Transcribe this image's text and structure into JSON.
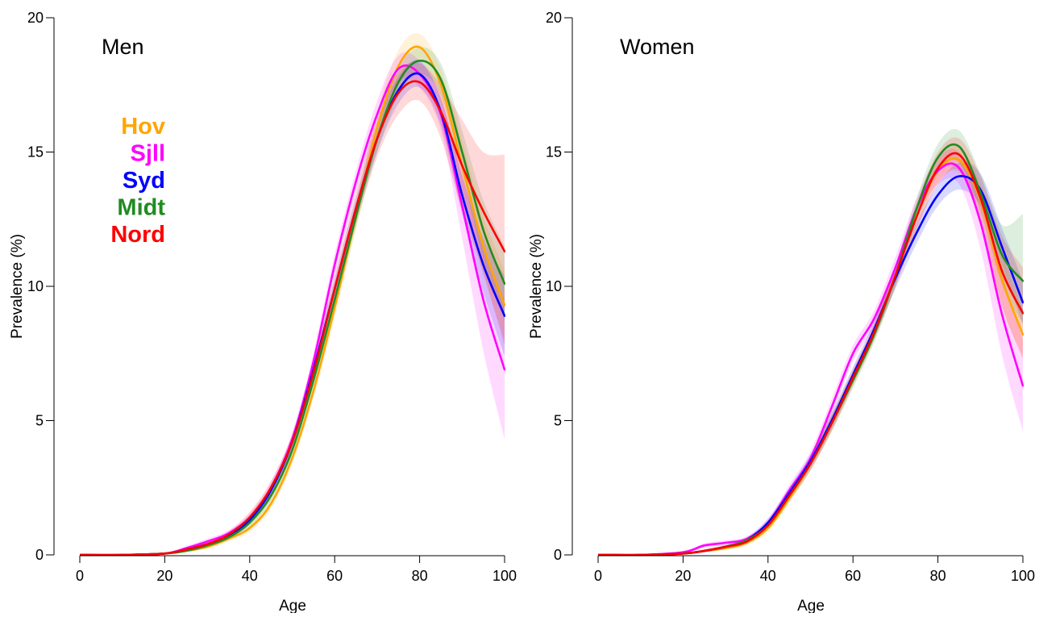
{
  "chart_data": [
    {
      "type": "line",
      "title": "Men",
      "xlabel": "Age",
      "ylabel": "Prevalence (%)",
      "xlim": [
        0,
        100
      ],
      "ylim": [
        0,
        20
      ],
      "xticks": [
        0,
        20,
        40,
        60,
        80,
        100
      ],
      "yticks": [
        0,
        5,
        10,
        15,
        20
      ],
      "grid": false,
      "legend": {
        "placement": "left",
        "entries": [
          "Hov",
          "Sjll",
          "Syd",
          "Midt",
          "Nord"
        ]
      },
      "series": [
        {
          "name": "Hov",
          "color": "#FFA500",
          "x": [
            0,
            10,
            20,
            25,
            30,
            35,
            40,
            45,
            50,
            55,
            60,
            65,
            70,
            75,
            80,
            85,
            90,
            95,
            100
          ],
          "y": [
            0,
            0,
            0.05,
            0.15,
            0.3,
            0.6,
            1.0,
            1.9,
            3.6,
            6.1,
            9.2,
            12.6,
            15.9,
            18.2,
            18.9,
            17.5,
            14.5,
            11.5,
            9.3
          ],
          "lower": [
            0,
            0,
            0.03,
            0.1,
            0.22,
            0.5,
            0.85,
            1.7,
            3.35,
            5.8,
            8.8,
            12.1,
            15.3,
            17.6,
            18.4,
            16.9,
            13.6,
            10.4,
            8.0
          ],
          "upper": [
            0,
            0,
            0.07,
            0.2,
            0.38,
            0.7,
            1.15,
            2.1,
            3.85,
            6.4,
            9.6,
            13.1,
            16.5,
            18.8,
            19.4,
            18.1,
            15.4,
            12.6,
            10.6
          ]
        },
        {
          "name": "Sjll",
          "color": "#FF00FF",
          "x": [
            0,
            10,
            20,
            25,
            30,
            35,
            40,
            45,
            50,
            55,
            60,
            65,
            70,
            75,
            80,
            85,
            90,
            95,
            100
          ],
          "y": [
            0,
            0,
            0.05,
            0.25,
            0.5,
            0.8,
            1.4,
            2.5,
            4.3,
            7.2,
            10.8,
            13.9,
            16.4,
            18.1,
            17.9,
            16.4,
            13.0,
            9.5,
            6.9
          ],
          "lower": [
            0,
            0,
            0.03,
            0.18,
            0.4,
            0.68,
            1.25,
            2.3,
            4.05,
            6.9,
            10.4,
            13.5,
            15.9,
            17.6,
            17.4,
            15.8,
            11.8,
            7.6,
            4.3
          ],
          "upper": [
            0,
            0,
            0.07,
            0.32,
            0.6,
            0.92,
            1.55,
            2.7,
            4.55,
            7.5,
            11.2,
            14.3,
            16.9,
            18.6,
            18.4,
            17.0,
            14.2,
            11.4,
            9.5
          ]
        },
        {
          "name": "Syd",
          "color": "#0000FF",
          "x": [
            0,
            10,
            20,
            25,
            30,
            35,
            40,
            45,
            50,
            55,
            60,
            65,
            70,
            75,
            80,
            85,
            90,
            95,
            100
          ],
          "y": [
            0,
            0,
            0.05,
            0.2,
            0.4,
            0.7,
            1.3,
            2.4,
            4.2,
            6.9,
            9.9,
            12.9,
            15.5,
            17.3,
            17.9,
            16.5,
            13.4,
            10.8,
            8.9
          ],
          "lower": [
            0,
            0,
            0.03,
            0.14,
            0.32,
            0.6,
            1.15,
            2.2,
            3.95,
            6.6,
            9.5,
            12.5,
            15.0,
            16.8,
            17.4,
            16.0,
            12.7,
            9.8,
            7.4
          ],
          "upper": [
            0,
            0,
            0.07,
            0.26,
            0.48,
            0.8,
            1.45,
            2.6,
            4.45,
            7.2,
            10.3,
            13.3,
            16.0,
            17.8,
            18.4,
            17.0,
            14.1,
            11.8,
            10.4
          ]
        },
        {
          "name": "Midt",
          "color": "#228B22",
          "x": [
            0,
            10,
            20,
            25,
            30,
            35,
            40,
            45,
            50,
            55,
            60,
            65,
            70,
            75,
            80,
            85,
            90,
            95,
            100
          ],
          "y": [
            0,
            0,
            0.05,
            0.15,
            0.35,
            0.65,
            1.2,
            2.2,
            3.9,
            6.5,
            9.5,
            12.6,
            15.5,
            17.6,
            18.4,
            17.7,
            15.0,
            12.1,
            10.1
          ],
          "lower": [
            0,
            0,
            0.03,
            0.1,
            0.27,
            0.55,
            1.05,
            2.0,
            3.65,
            6.2,
            9.1,
            12.2,
            15.0,
            17.1,
            17.9,
            17.1,
            14.2,
            11.0,
            8.7
          ],
          "upper": [
            0,
            0,
            0.07,
            0.2,
            0.43,
            0.75,
            1.35,
            2.4,
            4.15,
            6.8,
            9.9,
            13.0,
            16.0,
            18.1,
            18.9,
            18.3,
            15.8,
            13.2,
            11.5
          ]
        },
        {
          "name": "Nord",
          "color": "#FF0000",
          "x": [
            0,
            10,
            20,
            25,
            30,
            35,
            40,
            45,
            50,
            55,
            60,
            65,
            70,
            75,
            80,
            85,
            90,
            95,
            100
          ],
          "y": [
            0,
            0,
            0.05,
            0.2,
            0.4,
            0.75,
            1.4,
            2.5,
            4.2,
            6.8,
            9.9,
            12.9,
            15.5,
            17.2,
            17.6,
            16.5,
            14.5,
            12.8,
            11.3
          ],
          "lower": [
            0,
            0,
            0.03,
            0.14,
            0.32,
            0.63,
            1.2,
            2.25,
            3.9,
            6.4,
            9.4,
            12.3,
            14.8,
            16.4,
            16.9,
            15.5,
            12.8,
            10.5,
            7.8
          ],
          "upper": [
            0,
            0,
            0.07,
            0.26,
            0.48,
            0.87,
            1.6,
            2.75,
            4.5,
            7.2,
            10.4,
            13.5,
            16.2,
            18.0,
            18.3,
            17.5,
            16.2,
            15.0,
            14.9
          ]
        }
      ]
    },
    {
      "type": "line",
      "title": "Women",
      "xlabel": "Age",
      "ylabel": "Prevalence (%)",
      "xlim": [
        0,
        100
      ],
      "ylim": [
        0,
        20
      ],
      "xticks": [
        0,
        20,
        40,
        60,
        80,
        100
      ],
      "yticks": [
        0,
        5,
        10,
        15,
        20
      ],
      "grid": false,
      "series": [
        {
          "name": "Hov",
          "color": "#FFA500",
          "x": [
            0,
            10,
            20,
            25,
            30,
            35,
            40,
            45,
            50,
            55,
            60,
            65,
            70,
            75,
            80,
            85,
            90,
            95,
            100
          ],
          "y": [
            0,
            0,
            0.05,
            0.15,
            0.25,
            0.45,
            1.0,
            2.1,
            3.4,
            4.9,
            6.6,
            8.3,
            10.4,
            12.6,
            14.3,
            14.7,
            13.2,
            10.3,
            8.2
          ],
          "lower": [
            0,
            0,
            0.03,
            0.1,
            0.18,
            0.36,
            0.85,
            1.9,
            3.15,
            4.6,
            6.3,
            8.0,
            10.0,
            12.2,
            13.9,
            14.2,
            12.6,
            9.3,
            7.4
          ],
          "upper": [
            0,
            0,
            0.07,
            0.2,
            0.32,
            0.54,
            1.15,
            2.3,
            3.65,
            5.2,
            6.9,
            8.6,
            10.8,
            13.0,
            14.7,
            15.2,
            13.8,
            11.3,
            9.1
          ]
        },
        {
          "name": "Sjll",
          "color": "#FF00FF",
          "x": [
            0,
            10,
            20,
            25,
            30,
            35,
            40,
            45,
            50,
            55,
            60,
            65,
            70,
            75,
            80,
            85,
            90,
            95,
            100
          ],
          "y": [
            0,
            0,
            0.1,
            0.35,
            0.45,
            0.6,
            1.2,
            2.4,
            3.6,
            5.5,
            7.5,
            8.8,
            10.7,
            12.9,
            14.3,
            14.4,
            12.4,
            9.0,
            6.3
          ],
          "lower": [
            0,
            0,
            0.06,
            0.27,
            0.36,
            0.5,
            1.05,
            2.2,
            3.35,
            5.2,
            7.2,
            8.5,
            10.3,
            12.5,
            13.8,
            13.8,
            11.4,
            7.5,
            4.6
          ],
          "upper": [
            0,
            0,
            0.14,
            0.43,
            0.54,
            0.7,
            1.35,
            2.6,
            3.85,
            5.8,
            7.8,
            9.1,
            11.1,
            13.3,
            14.8,
            15.0,
            13.4,
            10.5,
            8.0
          ]
        },
        {
          "name": "Syd",
          "color": "#0000FF",
          "x": [
            0,
            10,
            20,
            25,
            30,
            35,
            40,
            45,
            50,
            55,
            60,
            65,
            70,
            75,
            80,
            85,
            90,
            95,
            100
          ],
          "y": [
            0,
            0,
            0.05,
            0.15,
            0.3,
            0.55,
            1.2,
            2.3,
            3.5,
            5.0,
            6.7,
            8.4,
            10.3,
            12.0,
            13.4,
            14.1,
            13.6,
            11.5,
            9.4
          ],
          "lower": [
            0,
            0,
            0.03,
            0.1,
            0.23,
            0.46,
            1.05,
            2.1,
            3.25,
            4.7,
            6.4,
            8.1,
            9.9,
            11.6,
            13.0,
            13.6,
            13.0,
            10.8,
            8.6
          ],
          "upper": [
            0,
            0,
            0.07,
            0.2,
            0.37,
            0.64,
            1.35,
            2.5,
            3.75,
            5.3,
            7.0,
            8.7,
            10.7,
            12.4,
            13.8,
            14.6,
            14.2,
            12.2,
            10.2
          ]
        },
        {
          "name": "Midt",
          "color": "#228B22",
          "x": [
            0,
            10,
            20,
            25,
            30,
            35,
            40,
            45,
            50,
            55,
            60,
            65,
            70,
            75,
            80,
            85,
            90,
            95,
            100
          ],
          "y": [
            0,
            0,
            0.05,
            0.15,
            0.3,
            0.55,
            1.1,
            2.2,
            3.4,
            4.9,
            6.5,
            8.2,
            10.4,
            12.9,
            14.8,
            15.2,
            13.5,
            11.2,
            10.2
          ],
          "lower": [
            0,
            0,
            0.03,
            0.1,
            0.23,
            0.46,
            0.95,
            2.0,
            3.15,
            4.6,
            6.2,
            7.9,
            10.0,
            12.5,
            14.3,
            14.6,
            12.8,
            10.1,
            8.6
          ],
          "upper": [
            0,
            0,
            0.07,
            0.2,
            0.37,
            0.64,
            1.25,
            2.4,
            3.65,
            5.2,
            6.8,
            8.5,
            10.8,
            13.3,
            15.3,
            15.8,
            14.2,
            12.3,
            12.7
          ]
        },
        {
          "name": "Nord",
          "color": "#FF0000",
          "x": [
            0,
            10,
            20,
            25,
            30,
            35,
            40,
            45,
            50,
            55,
            60,
            65,
            70,
            75,
            80,
            85,
            90,
            95,
            100
          ],
          "y": [
            0,
            0,
            0.05,
            0.15,
            0.3,
            0.5,
            1.1,
            2.2,
            3.4,
            4.9,
            6.6,
            8.3,
            10.4,
            12.6,
            14.4,
            14.9,
            13.3,
            10.6,
            9.0
          ],
          "lower": [
            0,
            0,
            0.03,
            0.1,
            0.23,
            0.41,
            0.95,
            2.0,
            3.15,
            4.6,
            6.3,
            8.0,
            10.0,
            12.1,
            13.8,
            14.3,
            12.5,
            9.3,
            7.3
          ],
          "upper": [
            0,
            0,
            0.07,
            0.2,
            0.37,
            0.59,
            1.25,
            2.4,
            3.65,
            5.2,
            6.9,
            8.6,
            10.8,
            13.1,
            15.0,
            15.5,
            14.1,
            11.9,
            10.7
          ]
        }
      ]
    }
  ]
}
